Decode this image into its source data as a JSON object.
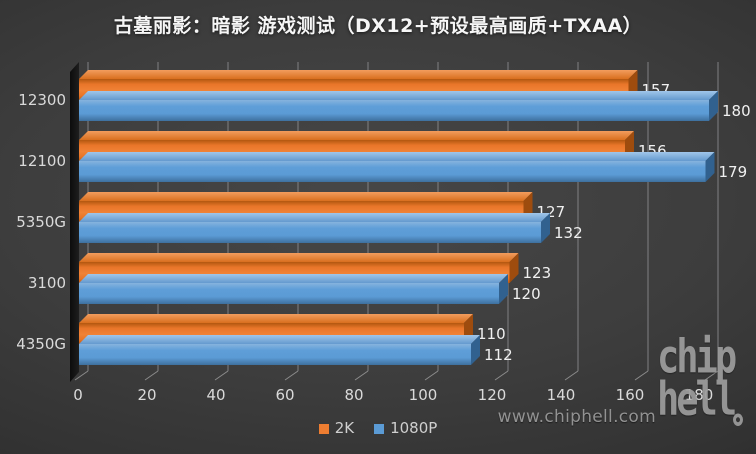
{
  "title": "古墓丽影：暗影 游戏测试（DX12+预设最高画质+TXAA）",
  "watermark": "www.chiphell.com",
  "logo": {
    "line1": "chip",
    "line2": "hell"
  },
  "legend": [
    {
      "label": "2K",
      "color": "#ED7D31"
    },
    {
      "label": "1080P",
      "color": "#5B9BD5"
    }
  ],
  "colors": {
    "background": "#3d3d3d",
    "gridline": "#88888b",
    "axis_text": "#dadada",
    "value_text": "#f0f0f0",
    "orange": "#ED7D31",
    "blue": "#5B9BD5"
  },
  "chart_data": {
    "type": "bar",
    "orientation": "horizontal",
    "title": "古墓丽影：暗影 游戏测试（DX12+预设最高画质+TXAA）",
    "categories": [
      "12300",
      "12100",
      "5350G",
      "3100",
      "4350G"
    ],
    "series": [
      {
        "name": "2K",
        "color": "#ED7D31",
        "values": [
          157,
          156,
          127,
          123,
          110
        ]
      },
      {
        "name": "1080P",
        "color": "#5B9BD5",
        "values": [
          180,
          179,
          132,
          120,
          112
        ]
      }
    ],
    "xlabel": "",
    "ylabel": "",
    "xlim": [
      0,
      180
    ],
    "xticks": [
      0,
      20,
      40,
      60,
      80,
      100,
      120,
      140,
      160,
      180
    ],
    "grid": true,
    "style": "3d",
    "legend_position": "bottom",
    "value_labels": true
  }
}
